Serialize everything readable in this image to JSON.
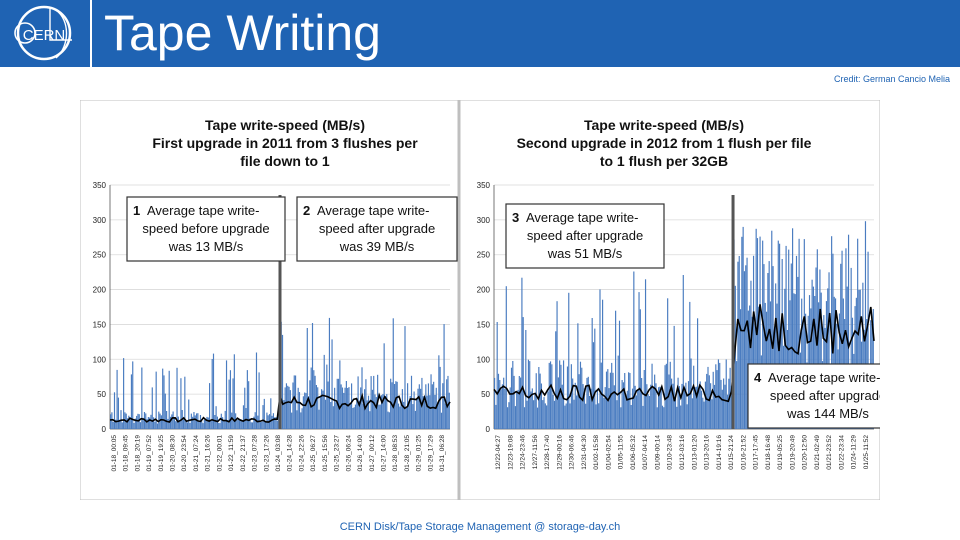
{
  "header": {
    "title": "Tape Writing",
    "logo_text": "CERN",
    "credit": "Credit: German Cancio Melia",
    "colors": {
      "brand": "#1f63b3",
      "bars": "#4a7cc0",
      "avg_line": "#000000"
    }
  },
  "footer": {
    "text": "CERN Disk/Tape Storage Management @ storage-day.ch"
  },
  "chart_data": [
    {
      "type": "bar",
      "title_lines": [
        "Tape write-speed (MB/s)",
        "First upgrade in 2011 from 3 flushes per",
        "file down to 1"
      ],
      "ylim": [
        0,
        350
      ],
      "yticks": [
        0,
        50,
        100,
        150,
        200,
        250,
        300,
        350
      ],
      "x_ticks": [
        "01-18_00:05",
        "01-18_09:45",
        "01-18_20:19",
        "01-19_07:52",
        "01-19_19:25",
        "01-20_08:30",
        "01-20_23:54",
        "01-21_07:24",
        "01-21_16:26",
        "01-22_00:01",
        "01-22_11:59",
        "01-22_21:37",
        "01-23_07:28",
        "01-23_17:26",
        "01-24_03:08",
        "01-24_14:28",
        "01-24_22:26",
        "01-25_06:27",
        "01-25_15:56",
        "01-25_23:27",
        "01-26_06:24",
        "01-26_14:00",
        "01-27_00:12",
        "01-27_14:00",
        "01-28_08:53",
        "01-28_21:05",
        "01-29_01:25",
        "01-29_17:29",
        "01-31_06:28"
      ],
      "upgrade_after_tick": 14,
      "series": [
        {
          "kind": "bars",
          "before_mean": 13,
          "before_max": 110,
          "after_mean": 39,
          "after_max": 160
        },
        {
          "kind": "line",
          "before_mean": 13,
          "after_mean": 39
        }
      ],
      "annotations": [
        {
          "num": "1",
          "lines": [
            "Average tape write-",
            "speed before upgrade",
            "was 13 MB/s"
          ]
        },
        {
          "num": "2",
          "lines": [
            "Average tape write-",
            "speed after upgrade",
            "was 39 MB/s"
          ]
        }
      ]
    },
    {
      "type": "bar",
      "title_lines": [
        "Tape write-speed (MB/s)",
        "Second upgrade in 2012 from 1 flush per file",
        "to 1 flush per 32GB"
      ],
      "ylim": [
        0,
        350
      ],
      "yticks": [
        0,
        50,
        100,
        150,
        200,
        250,
        300,
        350
      ],
      "x_ticks": [
        "12/22-04:27",
        "12/23-19:08",
        "12/24-23:46",
        "12/27-11:56",
        "12/28-17:40",
        "12/29-00:16",
        "12/30-06:46",
        "12/31-04:30",
        "01/02-15:58",
        "01/04-02:54",
        "01/05-11:55",
        "01/06-05:32",
        "01/07-04:14",
        "01/09-00:14",
        "01/10-23:48",
        "01/12-03:16",
        "01/13-01:20",
        "01/13-20:16",
        "01/14-19:16",
        "01/15-21:24",
        "01/16-21:52",
        "01/17-17:45",
        "01/18-16:48",
        "01/19-05:25",
        "01/19-20:49",
        "01/20-12:50",
        "01/21-02:49",
        "01/21-23:52",
        "01/22-23:34",
        "01/24-11:29",
        "01/25-11:52"
      ],
      "upgrade_after_tick": 19,
      "series": [
        {
          "kind": "bars",
          "before_mean": 51,
          "before_max": 230,
          "after_mean": 144,
          "after_max": 300
        },
        {
          "kind": "line",
          "before_mean": 51,
          "after_mean": 144
        }
      ],
      "annotations": [
        {
          "num": "3",
          "lines": [
            "Average tape write-",
            "speed after upgrade",
            "was 51 MB/s"
          ]
        },
        {
          "num": "4",
          "lines": [
            "Average tape write-",
            "speed after upgrade",
            "was 144 MB/s"
          ]
        }
      ]
    }
  ]
}
